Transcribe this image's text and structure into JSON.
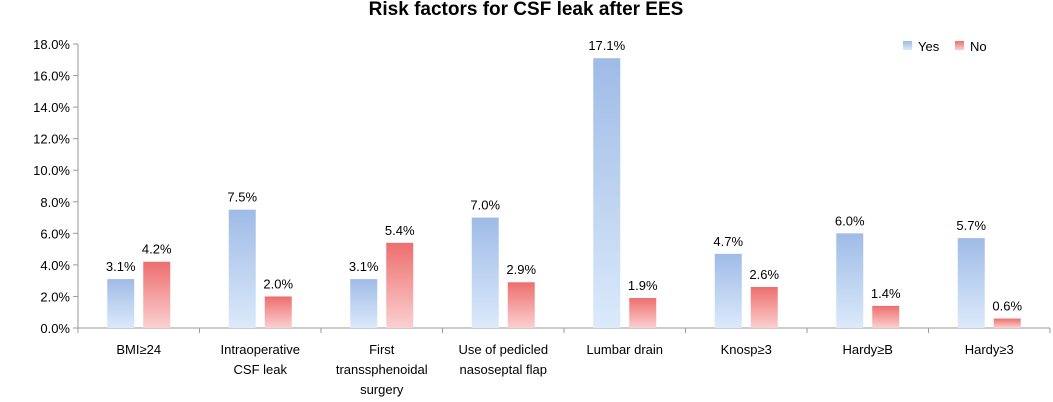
{
  "chart_data": {
    "type": "bar",
    "title": "Risk factors for CSF leak after EES",
    "xlabel": "",
    "ylabel": "",
    "ylim": [
      0,
      18
    ],
    "yticks": [
      "0.0%",
      "2.0%",
      "4.0%",
      "6.0%",
      "8.0%",
      "10.0%",
      "12.0%",
      "14.0%",
      "16.0%",
      "18.0%"
    ],
    "categories": [
      [
        "BMI≥24"
      ],
      [
        "Intraoperative",
        "CSF leak"
      ],
      [
        "First",
        "transsphenoidal",
        "surgery"
      ],
      [
        "Use of pedicled",
        "nasoseptal flap"
      ],
      [
        "Lumbar drain"
      ],
      [
        "Knosp≥3"
      ],
      [
        "Hardy≥B"
      ],
      [
        "Hardy≥3"
      ]
    ],
    "series": [
      {
        "name": "Yes",
        "color": "#8fb1e3",
        "values": [
          3.1,
          7.5,
          3.1,
          7.0,
          17.1,
          4.7,
          6.0,
          5.7
        ],
        "labels": [
          "3.1%",
          "7.5%",
          "3.1%",
          "7.0%",
          "17.1%",
          "4.7%",
          "6.0%",
          "5.7%"
        ]
      },
      {
        "name": "No",
        "color": "#f07a7a",
        "values": [
          4.2,
          2.0,
          5.4,
          2.9,
          1.9,
          2.6,
          1.4,
          0.6
        ],
        "labels": [
          "4.2%",
          "2.0%",
          "5.4%",
          "2.9%",
          "1.9%",
          "2.6%",
          "1.4%",
          "0.6%"
        ]
      }
    ],
    "grid": false,
    "legend_position": "top-right"
  }
}
